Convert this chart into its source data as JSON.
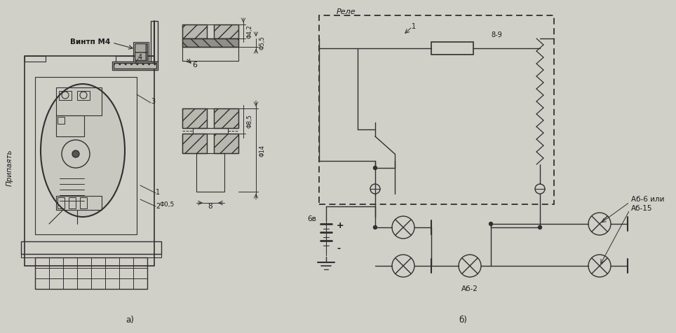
{
  "bg_color": "#d0cfc8",
  "line_color": "#303030",
  "line_color2": "#404040",
  "label_a": "a)",
  "label_b": "б)",
  "text_vint": "Винтп M4",
  "text_pridat": "Припаять",
  "text_rele": "Реле",
  "text_89": "8-9",
  "text_ab6ili": "Аб-6 или",
  "text_ab15": "Аб-15",
  "text_ab2": "Аб-2",
  "text_6v": "6в",
  "text_num1": "1",
  "text_num2": "2",
  "text_num3": "3",
  "text_num4": "4",
  "text_6b": "6",
  "text_8": "8",
  "text_phi42": "Φ4,2",
  "text_phi55": "Φ5,5",
  "text_phi85": "Φ8,5",
  "text_phi14": "Φ14",
  "text_05": "Φ0,5",
  "text_1": "1"
}
